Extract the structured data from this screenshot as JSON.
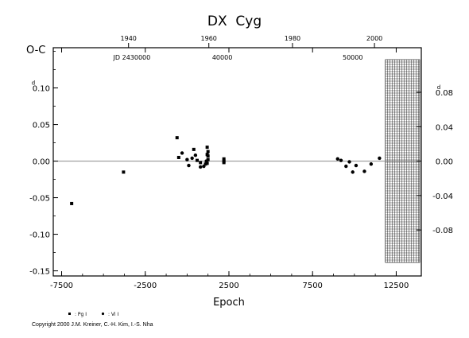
{
  "chart_data": {
    "type": "scatter",
    "title": "DX  Cyg",
    "ylabel": "O-C",
    "xlabel": "Epoch",
    "x_range": [
      -8000,
      14000
    ],
    "y_range": [
      -0.157,
      0.155
    ],
    "x_ticks": [
      "-7500",
      "-2500",
      "2500",
      "7500",
      "12500"
    ],
    "x_tick_values": [
      -7500,
      -2500,
      2500,
      7500,
      12500
    ],
    "y_ticks": [
      "-0.15",
      "-0.10",
      "-0.05",
      "0.00",
      "0.05",
      "0.10"
    ],
    "y_tick_values": [
      -0.15,
      -0.1,
      -0.05,
      0.0,
      0.05,
      0.1
    ],
    "y_unit_mark": "d",
    "right_ticks": [
      "-0.08",
      "-0.04",
      "0.00",
      "0.04",
      "0.08"
    ],
    "right_tick_values": [
      -0.08,
      -0.04,
      0.0,
      0.04,
      0.08
    ],
    "top_year_ticks": [
      "1940",
      "1960",
      "1980",
      "2000"
    ],
    "top_year_epochs": [
      -3500,
      1300,
      6300,
      11200
    ],
    "top_jd_ticks": [
      "JD 2430000",
      "40000",
      "50000"
    ],
    "top_jd_epochs": [
      -3300,
      2100,
      9900
    ],
    "future_region_start_epoch": 11850,
    "legend": [
      {
        "marker": "square",
        "label": ": Pg I"
      },
      {
        "marker": "circle",
        "label": ": Vi I"
      }
    ],
    "series": [
      {
        "name": "Pg",
        "marker": "square",
        "points": [
          [
            -6900,
            -0.058
          ],
          [
            -3800,
            -0.015
          ],
          [
            -600,
            0.032
          ],
          [
            -500,
            0.005
          ],
          [
            400,
            0.016
          ],
          [
            600,
            0.001
          ],
          [
            800,
            -0.002
          ],
          [
            1100,
            -0.004
          ],
          [
            1200,
            0.019
          ],
          [
            1250,
            0.013
          ],
          [
            1200,
            0.009
          ],
          [
            1250,
            0.007
          ],
          [
            1250,
            0.002
          ],
          [
            1200,
            -0.003
          ],
          [
            2200,
            0.003
          ],
          [
            2200,
            0.0
          ],
          [
            2200,
            -0.002
          ]
        ]
      },
      {
        "name": "Vi",
        "marker": "circle",
        "points": [
          [
            -300,
            0.011
          ],
          [
            0,
            0.002
          ],
          [
            300,
            0.004
          ],
          [
            500,
            0.008
          ],
          [
            100,
            -0.006
          ],
          [
            800,
            -0.008
          ],
          [
            1000,
            -0.007
          ],
          [
            1150,
            0.0
          ],
          [
            9000,
            0.003
          ],
          [
            9200,
            0.001
          ],
          [
            9500,
            -0.007
          ],
          [
            9700,
            -0.001
          ],
          [
            9900,
            -0.015
          ],
          [
            10100,
            -0.006
          ],
          [
            10600,
            -0.014
          ],
          [
            11000,
            -0.004
          ],
          [
            11500,
            0.004
          ]
        ]
      }
    ]
  },
  "copyright": "Copyright 2000 J.M. Kreiner, C.-H. Kim, I.-S. Nha"
}
